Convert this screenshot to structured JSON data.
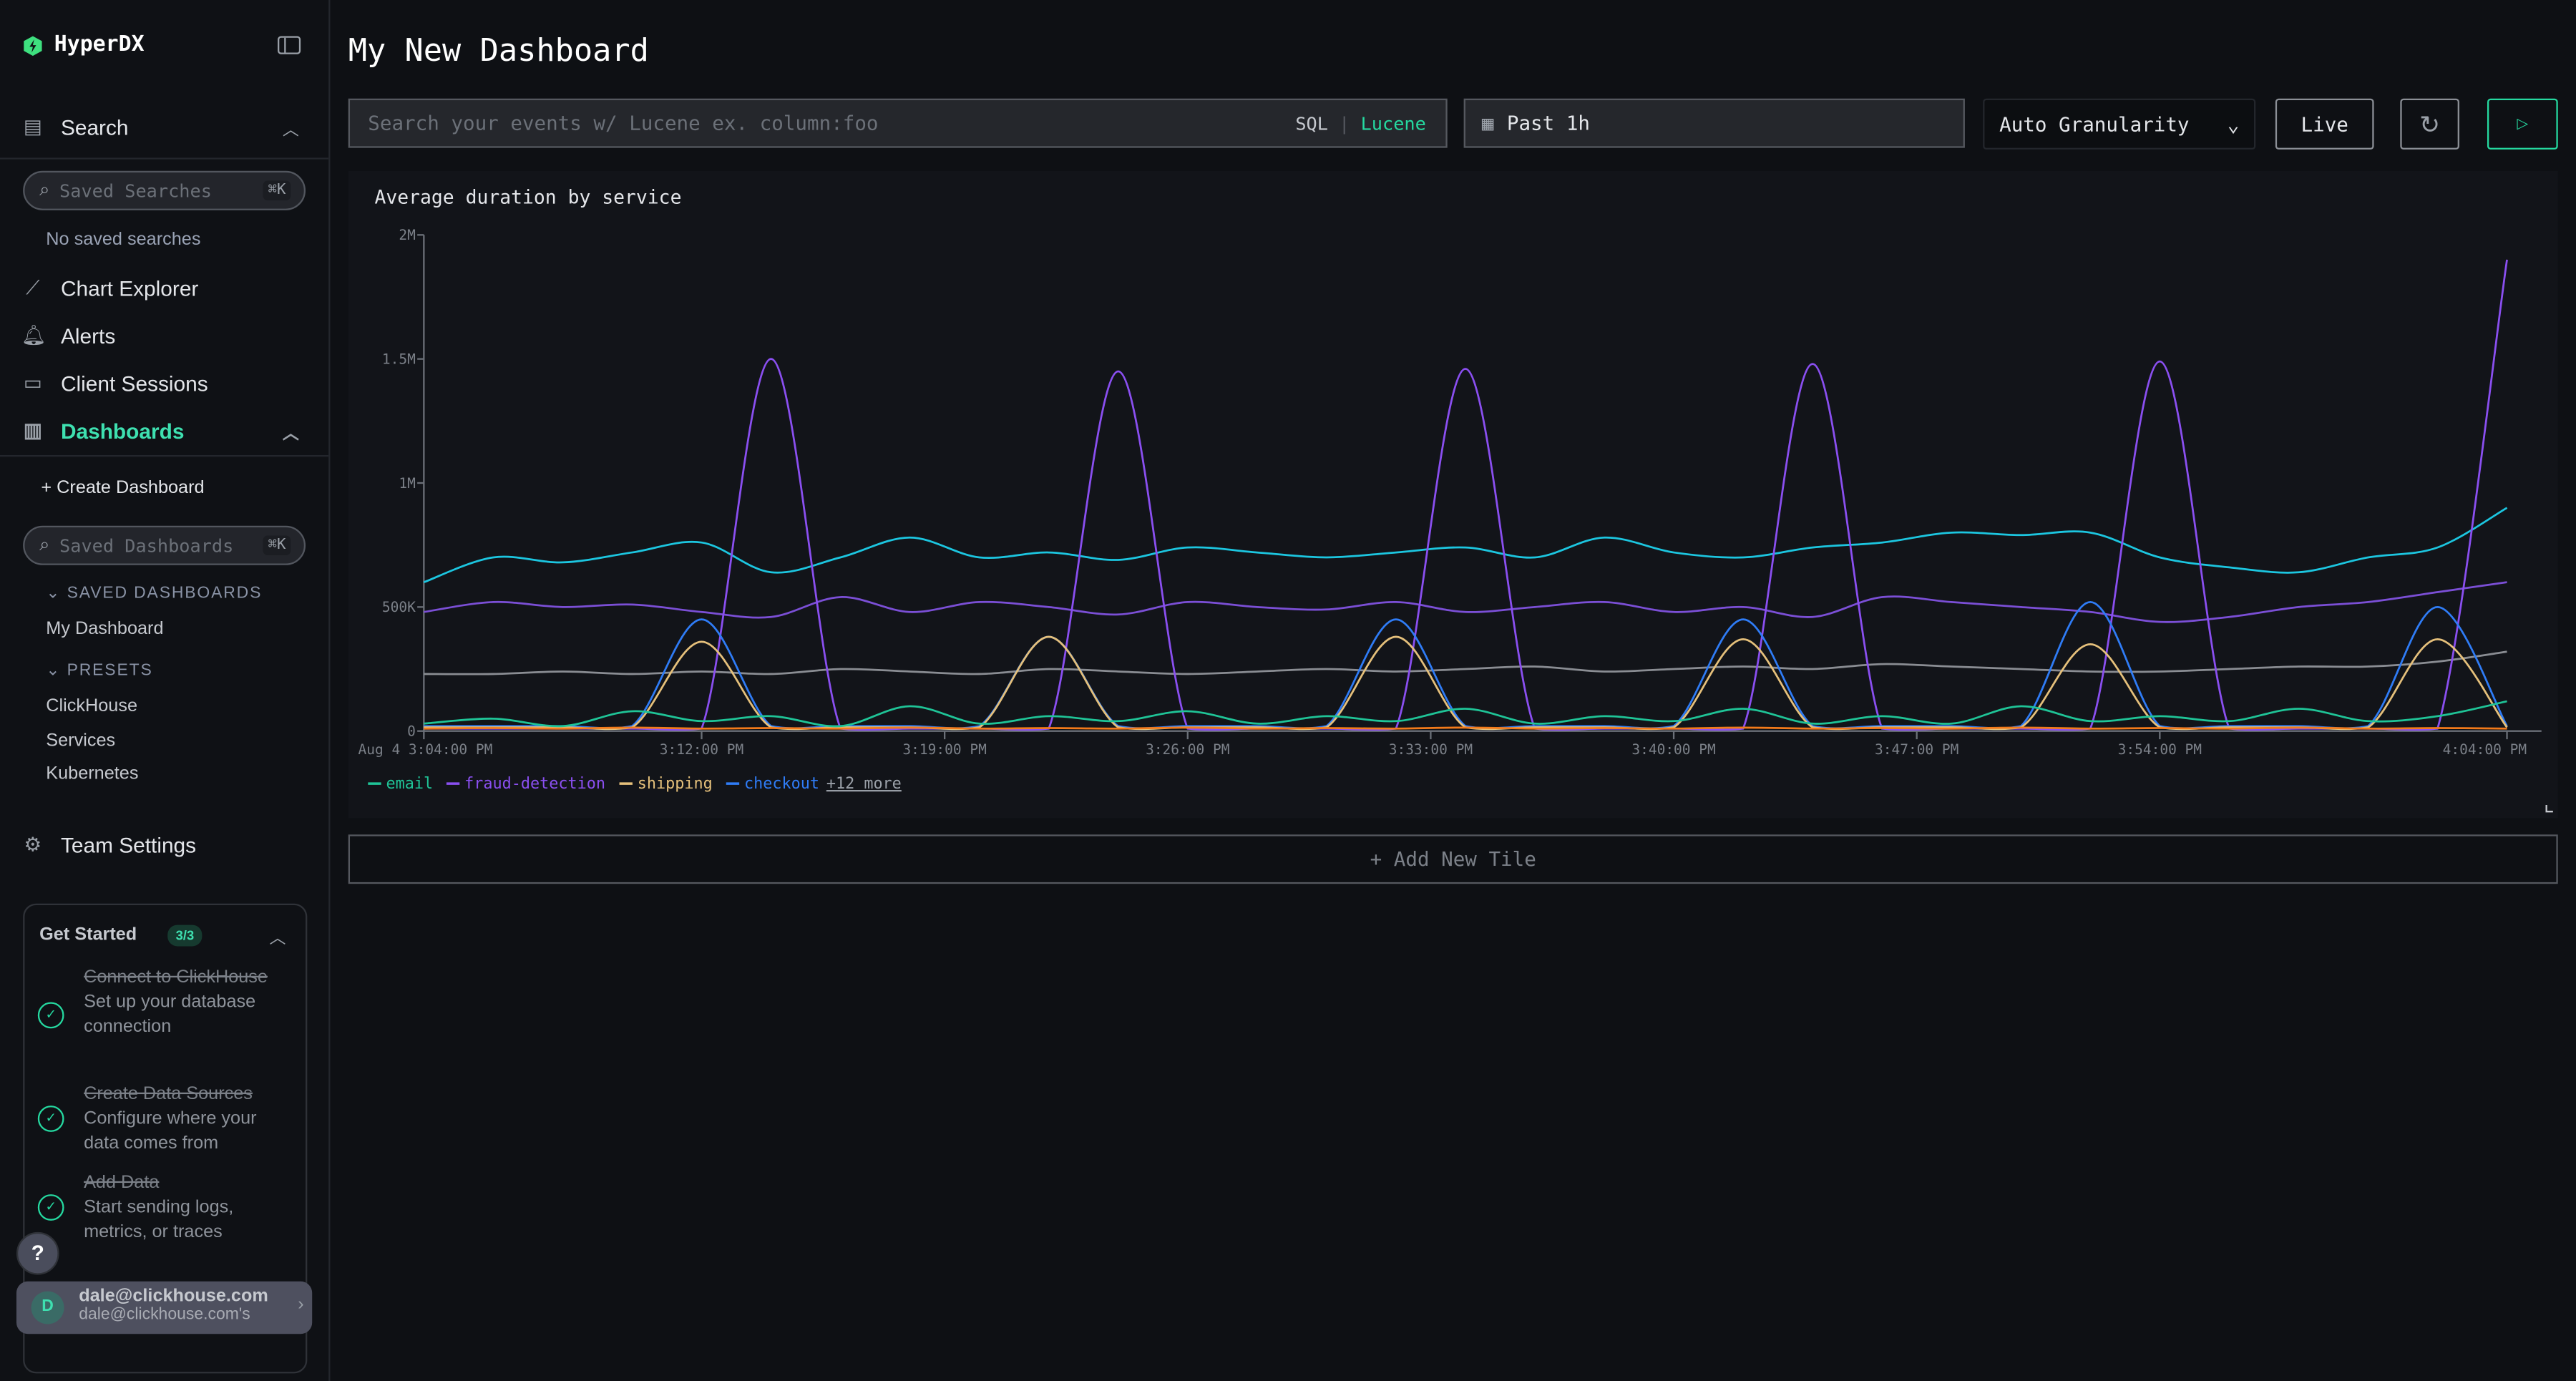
{
  "app": {
    "name": "HyperDX"
  },
  "sidebar": {
    "search": "Search",
    "saved_searches_placeholder": "Saved Searches",
    "shortcut": "⌘K",
    "no_saved": "No saved searches",
    "chart_explorer": "Chart Explorer",
    "alerts": "Alerts",
    "client_sessions": "Client Sessions",
    "dashboards": "Dashboards",
    "create_dashboard": "Create Dashboard",
    "saved_dashboards_placeholder": "Saved Dashboards",
    "saved_dashboards_header": "SAVED DASHBOARDS",
    "saved_dashboards": [
      "My Dashboard"
    ],
    "presets_header": "PRESETS",
    "presets": [
      "ClickHouse",
      "Services",
      "Kubernetes"
    ],
    "team_settings": "Team Settings",
    "get_started": {
      "title": "Get Started",
      "badge": "3/3",
      "steps": [
        {
          "title": "Connect to ClickHouse",
          "desc": "Set up your database connection"
        },
        {
          "title": "Create Data Sources",
          "desc": "Configure where your data comes from"
        },
        {
          "title": "Add Data",
          "desc": "Start sending logs, metrics, or traces"
        }
      ]
    },
    "help": "?",
    "user": {
      "initial": "D",
      "email": "dale@clickhouse.com",
      "team": "dale@clickhouse.com's"
    }
  },
  "header": {
    "title": "My New Dashboard",
    "search_placeholder": "Search your events w/ Lucene ex. column:foo",
    "sql": "SQL",
    "lucene": "Lucene",
    "time_range": "Past 1h",
    "granularity": "Auto Granularity",
    "live": "Live",
    "add_tile": "+ Add New Tile"
  },
  "colors": {
    "accent": "#25d9a0",
    "email": "#1fc497",
    "fraud": "#8a4ff0",
    "shipping": "#e5c07b",
    "checkout": "#2f7cf6",
    "cyan": "#1cc6e0",
    "purple2": "#7b4fd6",
    "gray": "#8a8d93",
    "orange": "#f27a1a"
  },
  "chart_data": {
    "type": "line",
    "title": "Average duration by service",
    "x": [
      "3:04",
      "3:06",
      "3:08",
      "3:10",
      "3:12",
      "3:14",
      "3:16",
      "3:18",
      "3:20",
      "3:22",
      "3:24",
      "3:26",
      "3:28",
      "3:30",
      "3:32",
      "3:34",
      "3:36",
      "3:38",
      "3:40",
      "3:42",
      "3:44",
      "3:46",
      "3:48",
      "3:50",
      "3:52",
      "3:54",
      "3:56",
      "3:58",
      "4:00",
      "4:02",
      "4:04"
    ],
    "x_ticks": [
      "Aug 4 3:04:00 PM",
      "3:12:00 PM",
      "3:19:00 PM",
      "3:26:00 PM",
      "3:33:00 PM",
      "3:40:00 PM",
      "3:47:00 PM",
      "3:54:00 PM",
      "4:04:00 PM"
    ],
    "y_ticks": [
      "0",
      "500K",
      "1M",
      "1.5M",
      "2M"
    ],
    "ylim": [
      0,
      2000000
    ],
    "series": [
      {
        "color": "#1cc6e0",
        "values": [
          600000,
          700000,
          680000,
          720000,
          760000,
          640000,
          700000,
          780000,
          700000,
          720000,
          690000,
          740000,
          720000,
          700000,
          720000,
          740000,
          700000,
          780000,
          720000,
          700000,
          740000,
          760000,
          800000,
          790000,
          800000,
          700000,
          660000,
          640000,
          700000,
          740000,
          900000
        ]
      },
      {
        "color": "#7b4fd6",
        "values": [
          480000,
          520000,
          500000,
          510000,
          480000,
          460000,
          540000,
          480000,
          520000,
          500000,
          470000,
          520000,
          500000,
          490000,
          520000,
          480000,
          500000,
          520000,
          480000,
          500000,
          460000,
          540000,
          520000,
          500000,
          480000,
          440000,
          460000,
          500000,
          520000,
          560000,
          600000
        ]
      },
      {
        "color": "#8a8d93",
        "values": [
          230000,
          230000,
          240000,
          230000,
          240000,
          230000,
          250000,
          240000,
          230000,
          250000,
          240000,
          230000,
          240000,
          250000,
          240000,
          250000,
          260000,
          240000,
          250000,
          260000,
          250000,
          270000,
          260000,
          250000,
          240000,
          240000,
          250000,
          260000,
          260000,
          280000,
          320000
        ]
      },
      {
        "name": "fraud-detection",
        "color": "#8a4ff0",
        "values": [
          10000,
          10000,
          10000,
          10000,
          10000,
          1500000,
          10000,
          10000,
          10000,
          10000,
          1450000,
          10000,
          10000,
          10000,
          10000,
          1460000,
          10000,
          10000,
          10000,
          10000,
          1480000,
          10000,
          10000,
          10000,
          10000,
          1490000,
          10000,
          10000,
          10000,
          10000,
          1900000
        ]
      },
      {
        "name": "checkout",
        "color": "#2f7cf6",
        "values": [
          20000,
          20000,
          20000,
          20000,
          450000,
          20000,
          20000,
          20000,
          20000,
          380000,
          20000,
          20000,
          20000,
          20000,
          450000,
          20000,
          20000,
          20000,
          20000,
          450000,
          20000,
          20000,
          20000,
          20000,
          520000,
          20000,
          20000,
          20000,
          20000,
          500000,
          20000
        ]
      },
      {
        "name": "shipping",
        "color": "#e5c07b",
        "values": [
          15000,
          15000,
          15000,
          15000,
          360000,
          15000,
          15000,
          15000,
          15000,
          380000,
          15000,
          15000,
          15000,
          15000,
          380000,
          15000,
          15000,
          15000,
          15000,
          370000,
          15000,
          15000,
          15000,
          15000,
          350000,
          15000,
          15000,
          15000,
          15000,
          370000,
          15000
        ]
      },
      {
        "name": "email",
        "color": "#1fc497",
        "values": [
          30000,
          50000,
          20000,
          80000,
          40000,
          60000,
          20000,
          100000,
          30000,
          60000,
          40000,
          80000,
          30000,
          60000,
          40000,
          90000,
          30000,
          60000,
          40000,
          90000,
          30000,
          60000,
          30000,
          100000,
          40000,
          60000,
          40000,
          90000,
          40000,
          60000,
          120000
        ]
      },
      {
        "color": "#f27a1a",
        "values": [
          10000,
          12000,
          10000,
          14000,
          10000,
          12000,
          10000,
          14000,
          10000,
          12000,
          10000,
          14000,
          10000,
          12000,
          10000,
          14000,
          10000,
          12000,
          10000,
          14000,
          10000,
          12000,
          10000,
          14000,
          10000,
          12000,
          10000,
          14000,
          10000,
          12000,
          10000
        ]
      }
    ],
    "legend": [
      "email",
      "fraud-detection",
      "shipping",
      "checkout"
    ],
    "legend_more": "+12 more",
    "legend_position": "bottom-left",
    "grid": false
  }
}
